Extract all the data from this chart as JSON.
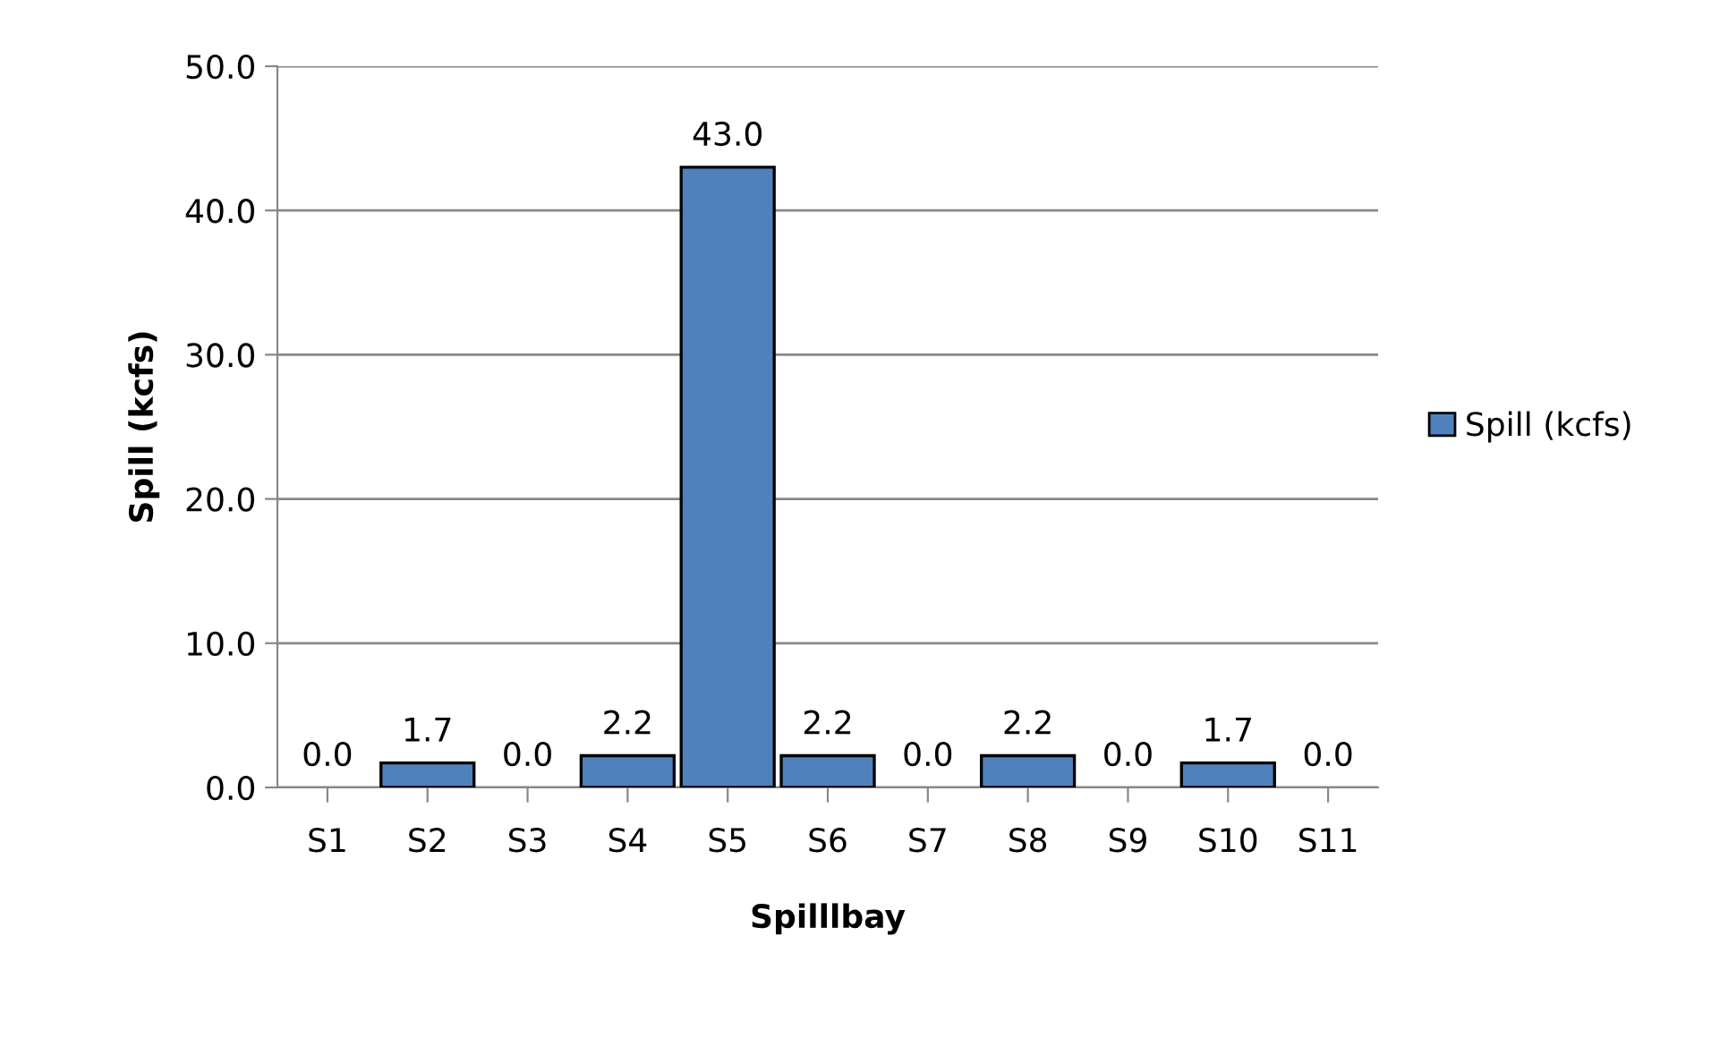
{
  "chart_data": {
    "type": "bar",
    "xlabel": "Spilllbay",
    "ylabel": "Spill (kcfs)",
    "categories": [
      "S1",
      "S2",
      "S3",
      "S4",
      "S5",
      "S6",
      "S7",
      "S8",
      "S9",
      "S10",
      "S11"
    ],
    "series": [
      {
        "name": "Spill (kcfs)",
        "color": "#4f81bd",
        "values": [
          0,
          1.7,
          0,
          2.2,
          43.0,
          2.2,
          0,
          2.2,
          0,
          1.7,
          0
        ],
        "value_labels": [
          "0.0",
          "1.7",
          "0.0",
          "2.2",
          "43.0",
          "2.2",
          "0.0",
          "2.2",
          "0.0",
          "1.7",
          "0.0"
        ]
      }
    ],
    "ylim": [
      0,
      50
    ],
    "yticks": [
      {
        "value": 0,
        "label": "0.0"
      },
      {
        "value": 10,
        "label": "10.0"
      },
      {
        "value": 20,
        "label": "20.0"
      },
      {
        "value": 30,
        "label": "30.0"
      },
      {
        "value": 40,
        "label": "40.0"
      },
      {
        "value": 50,
        "label": "50.0"
      }
    ],
    "grid": "y",
    "legend": "right"
  }
}
